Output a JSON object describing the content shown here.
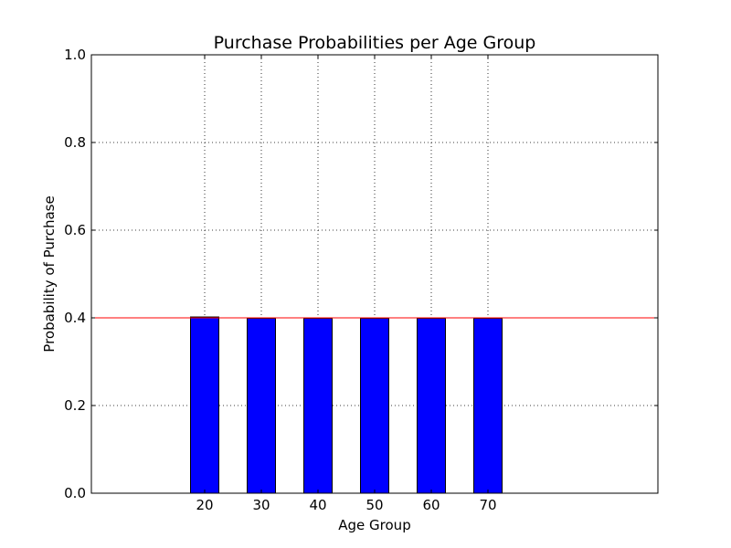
{
  "chart_data": {
    "type": "bar",
    "title": "Purchase Probabilities per Age Group",
    "xlabel": "Age Group",
    "ylabel": "Probability of Purchase",
    "categories": [
      "20",
      "30",
      "40",
      "50",
      "60",
      "70"
    ],
    "x": [
      20,
      30,
      40,
      50,
      60,
      70
    ],
    "values": [
      0.402,
      0.399,
      0.399,
      0.399,
      0.399,
      0.399
    ],
    "xlim": [
      0,
      100
    ],
    "ylim": [
      0.0,
      1.0
    ],
    "yticks": [
      "0.0",
      "0.2",
      "0.4",
      "0.6",
      "0.8",
      "1.0"
    ],
    "grid": true,
    "reference_line": {
      "value": 0.4,
      "color": "#ff0000"
    },
    "bar_color": "#0000ff"
  }
}
